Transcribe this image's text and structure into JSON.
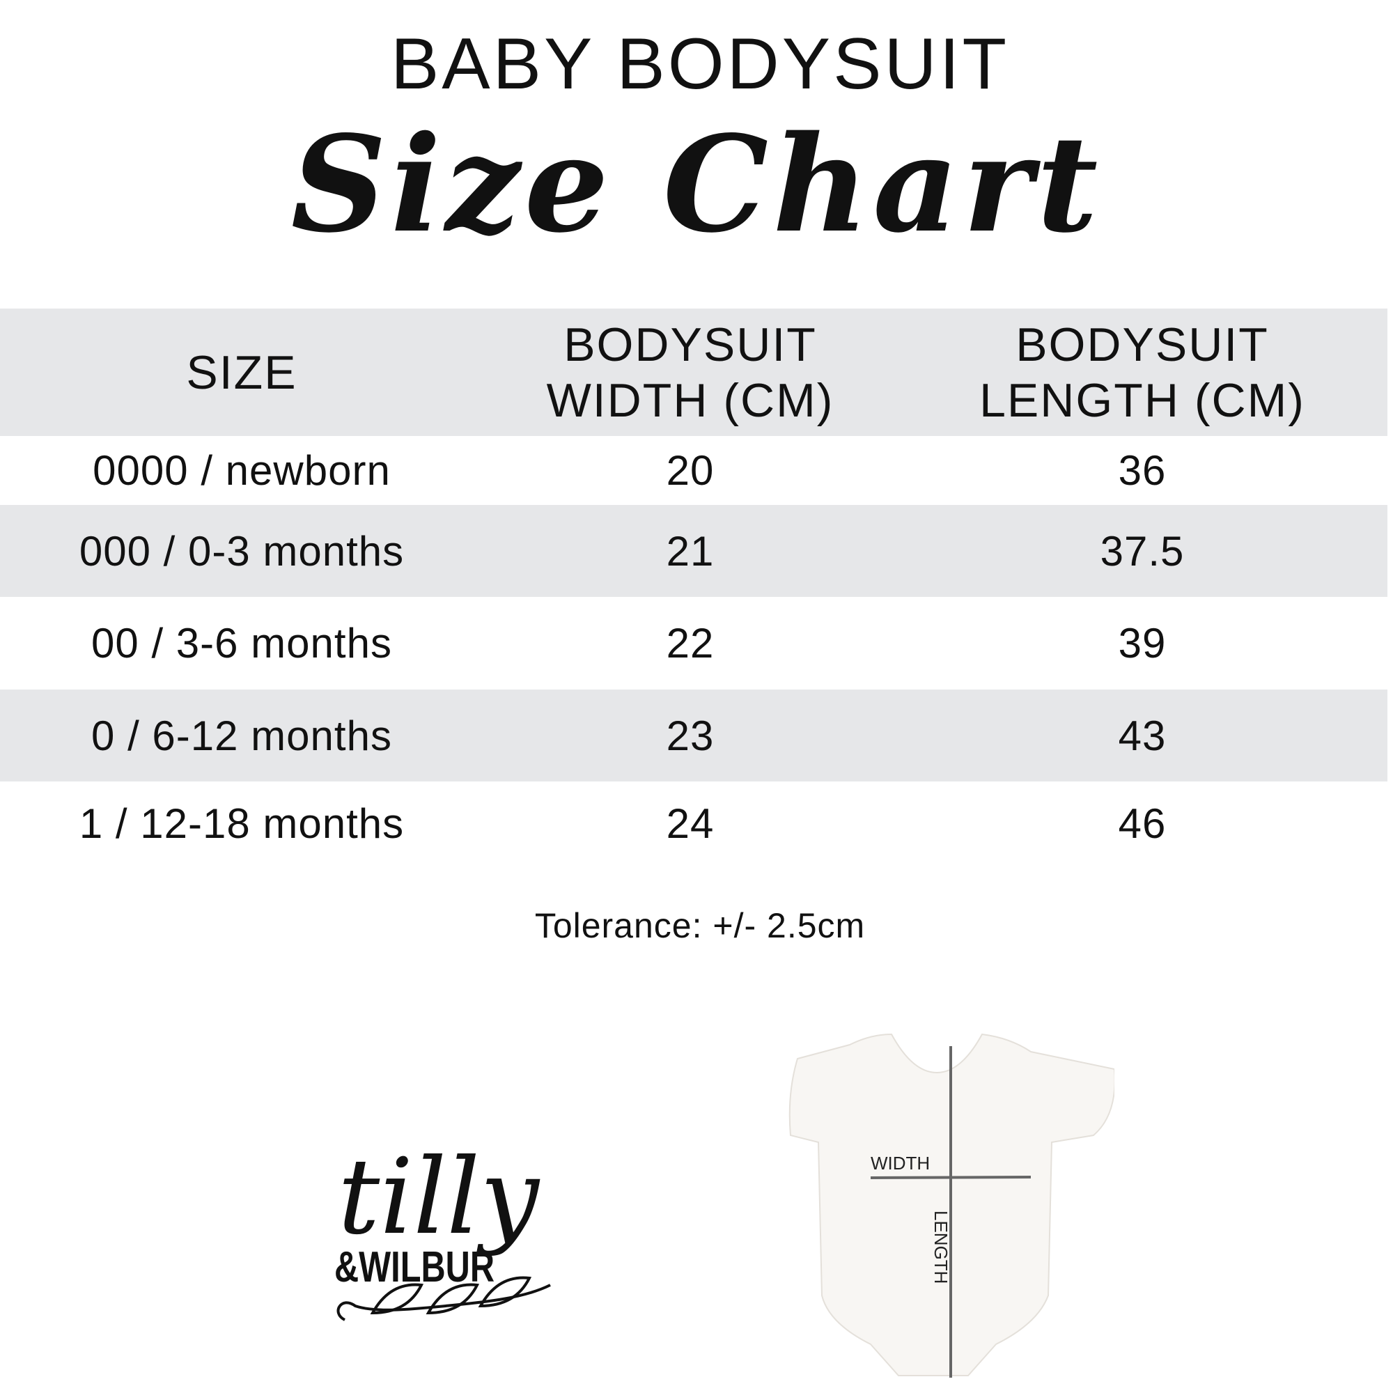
{
  "title": "BABY BODYSUIT",
  "subtitle": "Size Chart",
  "table": {
    "headers": [
      [
        "SIZE"
      ],
      [
        "BODYSUIT",
        "WIDTH (CM)"
      ],
      [
        "BODYSUIT",
        "LENGTH (CM)"
      ]
    ],
    "rows": [
      [
        "0000 / newborn",
        "20",
        "36"
      ],
      [
        "000 / 0-3 months",
        "21",
        "37.5"
      ],
      [
        "00 / 3-6 months",
        "22",
        "39"
      ],
      [
        "0 / 6-12 months",
        "23",
        "43"
      ],
      [
        "1 / 12-18 months",
        "24",
        "46"
      ]
    ]
  },
  "tolerance": "Tolerance: +/- 2.5cm",
  "logo": {
    "line1": "tilly",
    "line2": "&WILBUR"
  },
  "diagram": {
    "width_label": "WIDTH",
    "length_label": "LENGTH"
  },
  "colors": {
    "band": "#e6e7e9",
    "text": "#111111",
    "measure_line": "#666666"
  }
}
